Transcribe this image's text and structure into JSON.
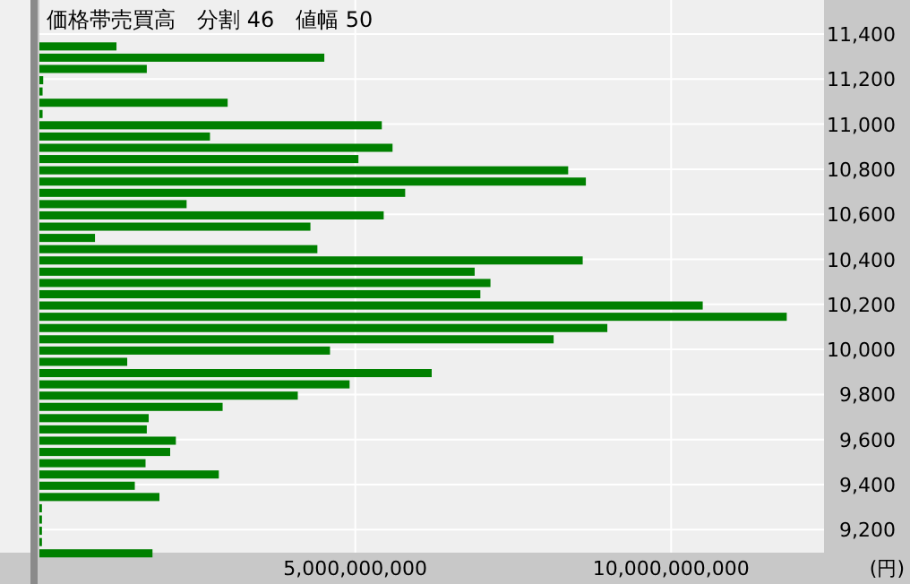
{
  "chart_data": {
    "type": "bar",
    "orientation": "horizontal",
    "title": "価格帯売買高　分割 46　値幅 50",
    "xlabel": "(円)",
    "color": "#008000",
    "grid": true,
    "x": [
      11345,
      11295,
      11245,
      11195,
      11145,
      11095,
      11045,
      10995,
      10945,
      10895,
      10845,
      10795,
      10745,
      10695,
      10645,
      10595,
      10545,
      10495,
      10445,
      10395,
      10345,
      10295,
      10245,
      10195,
      10145,
      10095,
      10045,
      9995,
      9945,
      9895,
      9845,
      9795,
      9745,
      9695,
      9645,
      9595,
      9545,
      9495,
      9445,
      9395,
      9345,
      9295,
      9245,
      9195,
      9145,
      9095
    ],
    "values": [
      1220000000,
      4510000000,
      1700000000,
      60000000,
      50000000,
      2980000000,
      50000000,
      5420000000,
      2700000000,
      5590000000,
      5050000000,
      8370000000,
      8650000000,
      5790000000,
      2330000000,
      5450000000,
      4290000000,
      880000000,
      4400000000,
      8600000000,
      6890000000,
      7140000000,
      6980000000,
      10500000000,
      11830000000,
      8990000000,
      8140000000,
      4600000000,
      1390000000,
      6210000000,
      4910000000,
      4090000000,
      2900000000,
      1730000000,
      1700000000,
      2160000000,
      2070000000,
      1680000000,
      2840000000,
      1510000000,
      1900000000,
      40000000,
      40000000,
      40000000,
      40000000,
      1790000000
    ],
    "xlim": [
      0,
      12420000000
    ],
    "xticks": [
      {
        "value": 5000000000,
        "label": "5,000,000,000"
      },
      {
        "value": 10000000000,
        "label": "10,000,000,000"
      }
    ],
    "ylim": [
      9098,
      11551
    ],
    "yticks": [
      {
        "value": 9200,
        "label": "9,200"
      },
      {
        "value": 9400,
        "label": "9,400"
      },
      {
        "value": 9600,
        "label": "9,600"
      },
      {
        "value": 9800,
        "label": "9,800"
      },
      {
        "value": 10000,
        "label": "10,000"
      },
      {
        "value": 10200,
        "label": "10,200"
      },
      {
        "value": 10400,
        "label": "10,400"
      },
      {
        "value": 10600,
        "label": "10,600"
      },
      {
        "value": 10800,
        "label": "10,800"
      },
      {
        "value": 11000,
        "label": "11,000"
      },
      {
        "value": 11200,
        "label": "11,200"
      },
      {
        "value": 11400,
        "label": "11,400"
      }
    ]
  }
}
